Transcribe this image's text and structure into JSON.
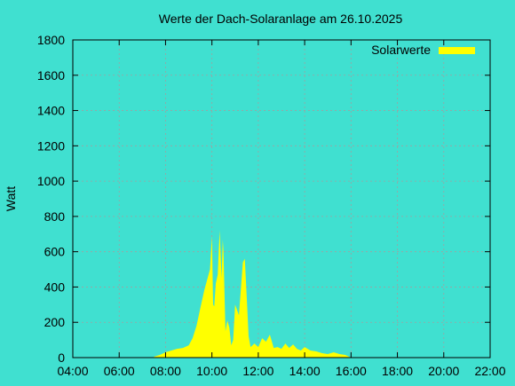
{
  "chart_data": {
    "type": "area",
    "title": "Werte der Dach-Solaranlage am 26.10.2025",
    "xlabel": "",
    "ylabel": "Watt",
    "x_ticks": [
      "04:00",
      "06:00",
      "08:00",
      "10:00",
      "12:00",
      "14:00",
      "16:00",
      "18:00",
      "20:00",
      "22:00"
    ],
    "y_ticks": [
      "0",
      "200",
      "400",
      "600",
      "800",
      "1000",
      "1200",
      "1400",
      "1600",
      "1800"
    ],
    "xlim": [
      "04:00",
      "22:00"
    ],
    "ylim": [
      0,
      1800
    ],
    "grid": true,
    "legend_position": "top-right",
    "colors": {
      "background": "#40e0d0",
      "series": "#ffff00",
      "grid": "#a0a0a0",
      "axis": "#000000"
    },
    "series": [
      {
        "name": "Solarwerte",
        "x": [
          "07:30",
          "07:45",
          "08:00",
          "08:15",
          "08:30",
          "08:45",
          "09:00",
          "09:10",
          "09:20",
          "09:30",
          "09:40",
          "09:50",
          "09:55",
          "10:00",
          "10:03",
          "10:06",
          "10:10",
          "10:15",
          "10:20",
          "10:25",
          "10:28",
          "10:30",
          "10:35",
          "10:40",
          "10:45",
          "10:50",
          "10:55",
          "11:00",
          "11:10",
          "11:20",
          "11:25",
          "11:30",
          "11:35",
          "11:40",
          "11:45",
          "11:50",
          "12:00",
          "12:10",
          "12:20",
          "12:30",
          "12:40",
          "12:50",
          "13:00",
          "13:10",
          "13:20",
          "13:30",
          "13:40",
          "13:50",
          "14:00",
          "14:15",
          "14:30",
          "14:45",
          "15:00",
          "15:15",
          "15:30",
          "15:45",
          "15:55",
          "16:00"
        ],
        "y": [
          5,
          15,
          30,
          40,
          50,
          55,
          70,
          110,
          180,
          280,
          380,
          460,
          500,
          690,
          300,
          290,
          420,
          470,
          720,
          450,
          670,
          600,
          150,
          210,
          170,
          70,
          100,
          300,
          240,
          540,
          560,
          350,
          120,
          60,
          70,
          80,
          60,
          110,
          90,
          130,
          55,
          60,
          50,
          80,
          55,
          75,
          50,
          40,
          60,
          40,
          35,
          25,
          20,
          30,
          20,
          15,
          5,
          0
        ]
      }
    ]
  }
}
